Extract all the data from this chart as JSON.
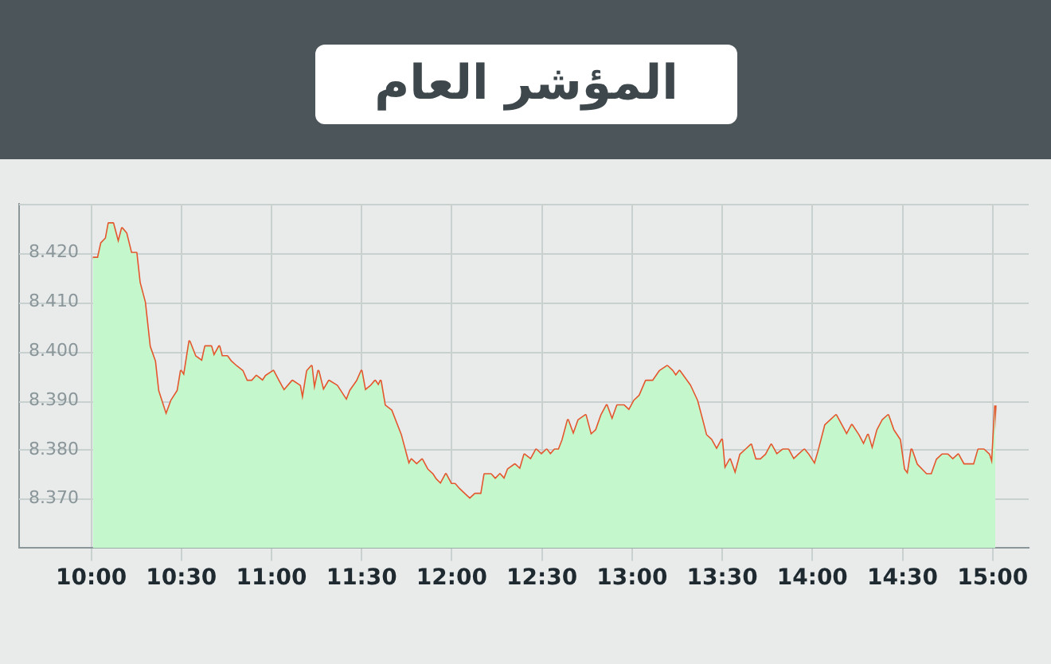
{
  "chart_data": {
    "type": "area",
    "title": "المؤشر العام",
    "x": [
      10.009,
      10.038,
      10.056,
      10.082,
      10.097,
      10.121,
      10.15,
      10.171,
      10.194,
      10.221,
      10.25,
      10.268,
      10.297,
      10.324,
      10.353,
      10.371,
      10.415,
      10.445,
      10.48,
      10.498,
      10.515,
      10.545,
      10.577,
      10.615,
      10.633,
      10.665,
      10.68,
      10.71,
      10.724,
      10.754,
      10.774,
      10.804,
      10.839,
      10.863,
      10.892,
      10.916,
      10.951,
      10.969,
      11.01,
      11.039,
      11.069,
      11.116,
      11.157,
      11.172,
      11.198,
      11.222,
      11.237,
      11.26,
      11.287,
      11.319,
      11.363,
      11.416,
      11.437,
      11.475,
      11.499,
      11.519,
      11.552,
      11.575,
      11.593,
      11.605,
      11.628,
      11.664,
      11.717,
      11.761,
      11.776,
      11.805,
      11.835,
      11.864,
      11.893,
      11.911,
      11.938,
      11.967,
      11.996,
      12.017,
      12.041,
      12.07,
      12.1,
      12.129,
      12.164,
      12.182,
      12.217,
      12.241,
      12.267,
      12.291,
      12.312,
      12.35,
      12.379,
      12.403,
      12.438,
      12.468,
      12.497,
      12.526,
      12.547,
      12.571,
      12.594,
      12.615,
      12.644,
      12.674,
      12.703,
      12.742,
      12.771,
      12.801,
      12.83,
      12.859,
      12.889,
      12.918,
      12.954,
      12.983,
      13.013,
      13.042,
      13.077,
      13.116,
      13.154,
      13.195,
      13.224,
      13.242,
      13.263,
      13.322,
      13.36,
      13.389,
      13.41,
      13.439,
      13.469,
      13.498,
      13.513,
      13.543,
      13.572,
      13.601,
      13.631,
      13.66,
      13.684,
      13.713,
      13.743,
      13.772,
      13.802,
      13.837,
      13.866,
      13.896,
      13.925,
      13.955,
      13.978,
      14.013,
      14.037,
      14.072,
      14.102,
      14.131,
      14.161,
      14.19,
      14.219,
      14.255,
      14.284,
      14.308,
      14.332,
      14.361,
      14.39,
      14.42,
      14.449,
      14.485,
      14.508,
      14.529,
      14.55,
      14.579,
      14.632,
      14.662,
      14.691,
      14.721,
      14.75,
      14.779,
      14.809,
      14.839,
      14.868,
      14.897,
      14.921,
      14.951,
      14.98,
      14.997,
      15.015
    ],
    "series": [
      {
        "color": "#c4f7cc",
        "values": [
          8.419,
          8.419,
          8.422,
          8.423,
          8.426,
          8.426,
          8.422,
          8.425,
          8.424,
          8.42,
          8.42,
          8.414,
          8.41,
          8.401,
          8.398,
          8.392,
          8.387,
          8.39,
          8.392,
          8.396,
          8.395,
          8.402,
          8.399,
          8.398,
          8.401,
          8.401,
          8.399,
          8.401,
          8.399,
          8.399,
          8.398,
          8.397,
          8.396,
          8.394,
          8.394,
          8.395,
          8.394,
          8.395,
          8.396,
          8.394,
          8.392,
          8.394,
          8.393,
          8.39,
          8.396,
          8.397,
          8.392,
          8.396,
          8.392,
          8.394,
          8.393,
          8.39,
          8.392,
          8.394,
          8.396,
          8.392,
          8.393,
          8.394,
          8.393,
          8.394,
          8.389,
          8.388,
          8.383,
          8.377,
          8.378,
          8.377,
          8.378,
          8.376,
          8.375,
          8.374,
          8.373,
          8.375,
          8.373,
          8.373,
          8.372,
          8.371,
          8.37,
          8.371,
          8.371,
          8.375,
          8.375,
          8.374,
          8.375,
          8.374,
          8.376,
          8.377,
          8.376,
          8.379,
          8.378,
          8.38,
          8.379,
          8.38,
          8.379,
          8.38,
          8.38,
          8.382,
          8.386,
          8.383,
          8.386,
          8.387,
          8.383,
          8.384,
          8.387,
          8.389,
          8.386,
          8.389,
          8.389,
          8.388,
          8.39,
          8.391,
          8.394,
          8.394,
          8.396,
          8.397,
          8.396,
          8.395,
          8.396,
          8.393,
          8.39,
          8.386,
          8.383,
          8.382,
          8.38,
          8.382,
          8.376,
          8.378,
          8.375,
          8.379,
          8.38,
          8.381,
          8.378,
          8.378,
          8.379,
          8.381,
          8.379,
          8.38,
          8.38,
          8.378,
          8.379,
          8.38,
          8.379,
          8.377,
          8.38,
          8.385,
          8.386,
          8.387,
          8.385,
          8.383,
          8.385,
          8.383,
          8.381,
          8.383,
          8.38,
          8.384,
          8.386,
          8.387,
          8.384,
          8.382,
          8.376,
          8.375,
          8.38,
          8.377,
          8.375,
          8.375,
          8.378,
          8.379,
          8.379,
          8.378,
          8.379,
          8.377,
          8.377,
          8.377,
          8.38,
          8.38,
          8.379,
          8.377,
          8.389
        ]
      },
      {
        "type": "line",
        "color": "#e4572e",
        "values": [
          8.419,
          8.419,
          8.422,
          8.423,
          8.426,
          8.426,
          8.422,
          8.425,
          8.424,
          8.42,
          8.42,
          8.414,
          8.41,
          8.401,
          8.398,
          8.392,
          8.387,
          8.39,
          8.392,
          8.396,
          8.395,
          8.402,
          8.399,
          8.398,
          8.401,
          8.401,
          8.399,
          8.401,
          8.399,
          8.399,
          8.398,
          8.397,
          8.396,
          8.394,
          8.394,
          8.395,
          8.394,
          8.395,
          8.396,
          8.394,
          8.392,
          8.394,
          8.393,
          8.39,
          8.396,
          8.397,
          8.392,
          8.396,
          8.392,
          8.394,
          8.393,
          8.39,
          8.392,
          8.394,
          8.396,
          8.392,
          8.393,
          8.394,
          8.393,
          8.394,
          8.389,
          8.388,
          8.383,
          8.377,
          8.378,
          8.377,
          8.378,
          8.376,
          8.375,
          8.374,
          8.373,
          8.375,
          8.373,
          8.373,
          8.372,
          8.371,
          8.37,
          8.371,
          8.371,
          8.375,
          8.375,
          8.374,
          8.375,
          8.374,
          8.376,
          8.377,
          8.376,
          8.379,
          8.378,
          8.38,
          8.379,
          8.38,
          8.379,
          8.38,
          8.38,
          8.382,
          8.386,
          8.383,
          8.386,
          8.387,
          8.383,
          8.384,
          8.387,
          8.389,
          8.386,
          8.389,
          8.389,
          8.388,
          8.39,
          8.391,
          8.394,
          8.394,
          8.396,
          8.397,
          8.396,
          8.395,
          8.396,
          8.393,
          8.39,
          8.386,
          8.383,
          8.382,
          8.38,
          8.382,
          8.376,
          8.378,
          8.375,
          8.379,
          8.38,
          8.381,
          8.378,
          8.378,
          8.379,
          8.381,
          8.379,
          8.38,
          8.38,
          8.378,
          8.379,
          8.38,
          8.379,
          8.377,
          8.38,
          8.385,
          8.386,
          8.387,
          8.385,
          8.383,
          8.385,
          8.383,
          8.381,
          8.383,
          8.38,
          8.384,
          8.386,
          8.387,
          8.384,
          8.382,
          8.376,
          8.375,
          8.38,
          8.377,
          8.375,
          8.375,
          8.378,
          8.379,
          8.379,
          8.378,
          8.379,
          8.377,
          8.377,
          8.377,
          8.38,
          8.38,
          8.379,
          8.377,
          8.389
        ]
      }
    ],
    "xlim": [
      9.6,
      15.2
    ],
    "xticks": [
      {
        "value": 10,
        "label": "10:00"
      },
      {
        "value": 10.5,
        "label": "10:30"
      },
      {
        "value": 11,
        "label": "11:00"
      },
      {
        "value": 11.5,
        "label": "11:30"
      },
      {
        "value": 12,
        "label": "12:00"
      },
      {
        "value": 12.5,
        "label": "12:30"
      },
      {
        "value": 13,
        "label": "13:00"
      },
      {
        "value": 13.5,
        "label": "13:30"
      },
      {
        "value": 14,
        "label": "14:00"
      },
      {
        "value": 14.5,
        "label": "14:30"
      },
      {
        "value": 15,
        "label": "15:00"
      }
    ],
    "ylim": [
      8.36,
      8.43
    ],
    "yticks": [
      {
        "value": 8.37,
        "label": "8.370"
      },
      {
        "value": 8.38,
        "label": "8.380"
      },
      {
        "value": 8.39,
        "label": "8.390"
      },
      {
        "value": 8.4,
        "label": "8.400"
      },
      {
        "value": 8.41,
        "label": "8.410"
      },
      {
        "value": 8.42,
        "label": "8.420"
      },
      {
        "value": 8.43,
        "label": null
      }
    ],
    "grid": true,
    "marker": "none",
    "line_style": "solid"
  }
}
